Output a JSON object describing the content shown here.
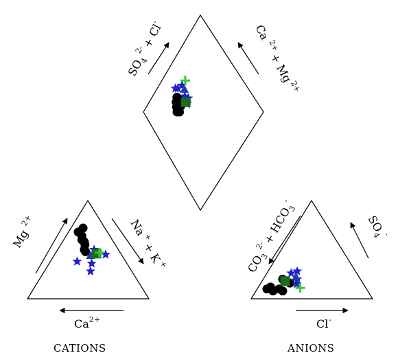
{
  "chart_data": {
    "type": "scatter",
    "subtype": "piper-diagram",
    "plots": [
      {
        "name": "cations",
        "caption": "CATIONS",
        "vertices": [
          "Ca",
          "Mg",
          "Na+K"
        ],
        "labels": {
          "left_arrow": {
            "base": "Mg",
            "sup": "2+"
          },
          "right_arrow": {
            "parts": [
              "Na",
              "+",
              "+ K",
              "+"
            ]
          },
          "bottom_arrow": {
            "base": "Ca",
            "sup": "2+"
          }
        },
        "points": [
          {
            "marker": "circle",
            "color": "#000000",
            "a": 0.1,
            "b": 0.72
          },
          {
            "marker": "circle",
            "color": "#000000",
            "a": 0.08,
            "b": 0.68
          },
          {
            "marker": "circle",
            "color": "#000000",
            "a": 0.13,
            "b": 0.64
          },
          {
            "marker": "circle",
            "color": "#000000",
            "a": 0.15,
            "b": 0.6
          },
          {
            "marker": "circle",
            "color": "#000000",
            "a": 0.18,
            "b": 0.58
          },
          {
            "marker": "circle",
            "color": "#000000",
            "a": 0.2,
            "b": 0.55
          },
          {
            "marker": "circle",
            "color": "#000000",
            "a": 0.22,
            "b": 0.5
          },
          {
            "marker": "circle",
            "color": "#000000",
            "a": 0.24,
            "b": 0.48
          },
          {
            "marker": "star",
            "color": "#1f1fcf",
            "a": 0.22,
            "b": 0.38
          },
          {
            "marker": "star",
            "color": "#1f1fcf",
            "a": 0.38,
            "b": 0.28
          },
          {
            "marker": "star",
            "color": "#1f1fcf",
            "a": 0.35,
            "b": 0.36
          },
          {
            "marker": "star",
            "color": "#1f1fcf",
            "a": 0.3,
            "b": 0.5
          },
          {
            "marker": "star",
            "color": "#1f1fcf",
            "a": 0.42,
            "b": 0.45
          },
          {
            "marker": "triangle",
            "color": "#1f3fa0",
            "a": 0.3,
            "b": 0.44
          },
          {
            "marker": "square",
            "color": "#1e6b1e",
            "a": 0.34,
            "b": 0.46
          },
          {
            "marker": "cross",
            "color": "#33cc33",
            "a": 0.36,
            "b": 0.47
          }
        ]
      },
      {
        "name": "anions",
        "caption": "ANIONS",
        "vertices": [
          "CO3+HCO3",
          "SO4",
          "Cl"
        ],
        "labels": {
          "left_arrow": {
            "parts": [
              "CO",
              "3",
              "2-",
              "+ HCO",
              "3",
              "-"
            ]
          },
          "right_arrow": {
            "base": "SO",
            "sub": "4",
            "sup": "-"
          },
          "bottom_arrow": {
            "base": "Cl",
            "sup": "-"
          }
        },
        "points": [
          {
            "marker": "circle",
            "color": "#000000",
            "a": 0.08,
            "b": 0.1
          },
          {
            "marker": "circle",
            "color": "#000000",
            "a": 0.1,
            "b": 0.12
          },
          {
            "marker": "circle",
            "color": "#000000",
            "a": 0.14,
            "b": 0.08
          },
          {
            "marker": "circle",
            "color": "#000000",
            "a": 0.18,
            "b": 0.1
          },
          {
            "marker": "circle",
            "color": "#000000",
            "a": 0.22,
            "b": 0.08
          },
          {
            "marker": "circle",
            "color": "#000000",
            "a": 0.16,
            "b": 0.2
          },
          {
            "marker": "circle",
            "color": "#000000",
            "a": 0.24,
            "b": 0.16
          },
          {
            "marker": "star",
            "color": "#1f1fcf",
            "a": 0.2,
            "b": 0.26
          },
          {
            "marker": "star",
            "color": "#1f1fcf",
            "a": 0.24,
            "b": 0.28
          },
          {
            "marker": "star",
            "color": "#1f1fcf",
            "a": 0.28,
            "b": 0.2
          },
          {
            "marker": "star",
            "color": "#1f1fcf",
            "a": 0.3,
            "b": 0.15
          },
          {
            "marker": "square",
            "color": "#1e6b1e",
            "a": 0.19,
            "b": 0.18
          },
          {
            "marker": "triangle",
            "color": "#1f3fa0",
            "a": 0.26,
            "b": 0.22
          },
          {
            "marker": "cross",
            "color": "#33cc33",
            "a": 0.35,
            "b": 0.11
          }
        ]
      },
      {
        "name": "diamond",
        "labels": {
          "upper_left": {
            "parts": [
              "SO",
              "4",
              "2-",
              "+ Cl",
              "-"
            ]
          },
          "upper_right": {
            "parts": [
              "Ca",
              "2+",
              "+ Mg",
              "2+"
            ]
          }
        },
        "points": [
          {
            "marker": "circle",
            "color": "#000000",
            "u": 0.7,
            "v": 0.3
          },
          {
            "marker": "circle",
            "color": "#000000",
            "u": 0.72,
            "v": 0.28
          },
          {
            "marker": "circle",
            "color": "#000000",
            "u": 0.75,
            "v": 0.3
          },
          {
            "marker": "circle",
            "color": "#000000",
            "u": 0.78,
            "v": 0.32
          },
          {
            "marker": "circle",
            "color": "#000000",
            "u": 0.8,
            "v": 0.35
          },
          {
            "marker": "circle",
            "color": "#000000",
            "u": 0.76,
            "v": 0.36
          },
          {
            "marker": "circle",
            "color": "#000000",
            "u": 0.72,
            "v": 0.34
          },
          {
            "marker": "star",
            "color": "#1f1fcf",
            "u": 0.82,
            "v": 0.45
          },
          {
            "marker": "star",
            "color": "#1f1fcf",
            "u": 0.84,
            "v": 0.4
          },
          {
            "marker": "star",
            "color": "#1f1fcf",
            "u": 0.68,
            "v": 0.4
          },
          {
            "marker": "star",
            "color": "#1f1fcf",
            "u": 0.7,
            "v": 0.44
          },
          {
            "marker": "star",
            "color": "#1f1fcf",
            "u": 0.74,
            "v": 0.42
          },
          {
            "marker": "star",
            "color": "#1f1fcf",
            "u": 0.86,
            "v": 0.38
          },
          {
            "marker": "triangle",
            "color": "#1f3fa0",
            "u": 0.78,
            "v": 0.45
          },
          {
            "marker": "square",
            "color": "#1e6b1e",
            "u": 0.7,
            "v": 0.4
          },
          {
            "marker": "cross",
            "color": "#33cc33",
            "u": 0.82,
            "v": 0.5
          }
        ]
      }
    ]
  }
}
